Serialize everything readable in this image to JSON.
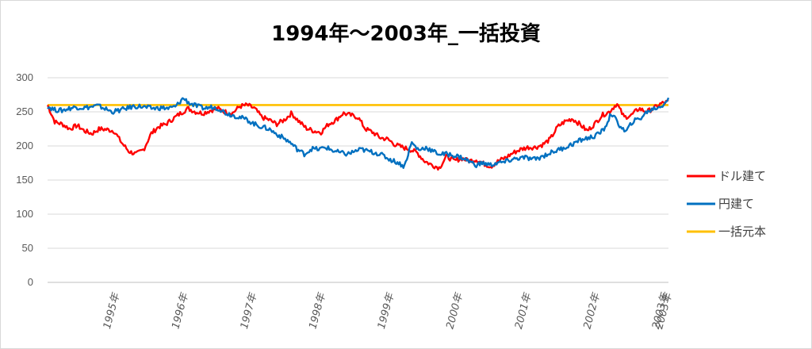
{
  "chart_data": {
    "type": "line",
    "title": "1994年～2003年_一括投資",
    "ylim": [
      0,
      300
    ],
    "yticks": [
      0,
      50,
      100,
      150,
      200,
      250,
      300
    ],
    "x_tick_labels": [
      "1995年",
      "1996年",
      "1997年",
      "1998年",
      "1999年",
      "2000年",
      "2001年",
      "2002年",
      "2003年",
      "2003年"
    ],
    "grid": "horizontal",
    "legend_position": "right",
    "series": [
      {
        "name": "ドル建て",
        "color": "#ff0000",
        "values": [
          260,
          235,
          232,
          225,
          230,
          222,
          218,
          225,
          224,
          222,
          205,
          192,
          188,
          195,
          218,
          228,
          232,
          240,
          248,
          255,
          250,
          248,
          252,
          255,
          250,
          248,
          258,
          260,
          255,
          242,
          238,
          232,
          238,
          248,
          236,
          226,
          222,
          220,
          232,
          238,
          248,
          245,
          242,
          225,
          220,
          212,
          210,
          202,
          198,
          195,
          190,
          178,
          172,
          168,
          185,
          178,
          182,
          178,
          180,
          174,
          170,
          178,
          183,
          190,
          195,
          198,
          198,
          202,
          210,
          228,
          236,
          240,
          232,
          222,
          232,
          245,
          250,
          262,
          242,
          245,
          255,
          250,
          255,
          262,
          265
        ]
      },
      {
        "name": "円建て",
        "color": "#0070c0",
        "values": [
          258,
          253,
          252,
          255,
          257,
          256,
          257,
          259,
          255,
          250,
          252,
          255,
          258,
          258,
          256,
          255,
          256,
          255,
          258,
          270,
          262,
          258,
          255,
          257,
          255,
          248,
          245,
          242,
          238,
          232,
          228,
          225,
          218,
          212,
          205,
          195,
          188,
          196,
          195,
          198,
          193,
          190,
          188,
          192,
          195,
          192,
          190,
          186,
          180,
          176,
          170,
          205,
          194,
          198,
          192,
          188,
          188,
          186,
          183,
          178,
          172,
          175,
          172,
          175,
          176,
          180,
          182,
          183,
          180,
          183,
          188,
          192,
          196,
          200,
          205,
          210,
          212,
          216,
          225,
          248,
          232,
          220,
          236,
          240,
          250,
          255,
          258,
          270
        ]
      },
      {
        "name": "一括元本",
        "color": "#ffc000",
        "values": [
          260,
          260
        ]
      }
    ]
  }
}
